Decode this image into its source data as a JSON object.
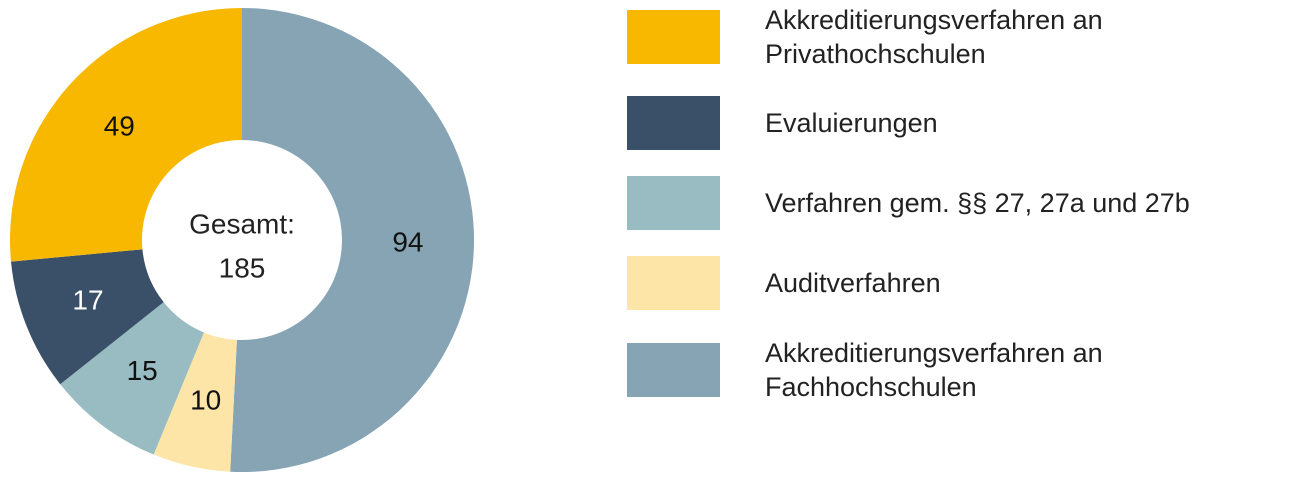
{
  "chart_data": {
    "type": "donut",
    "categories": [
      "Akkreditierungsverfahren an Privathochschulen",
      "Evaluierungen",
      "Verfahren gem. §§ 27, 27a und 27b",
      "Auditverfahren",
      "Akkreditierungsverfahren an Fachhochschulen"
    ],
    "values": [
      49,
      17,
      15,
      10,
      94
    ],
    "colors": [
      "#f9b800",
      "#3a5068",
      "#98bcc2",
      "#fde5a8",
      "#86a4b4"
    ],
    "center_label": "Gesamt:",
    "total": 185
  }
}
